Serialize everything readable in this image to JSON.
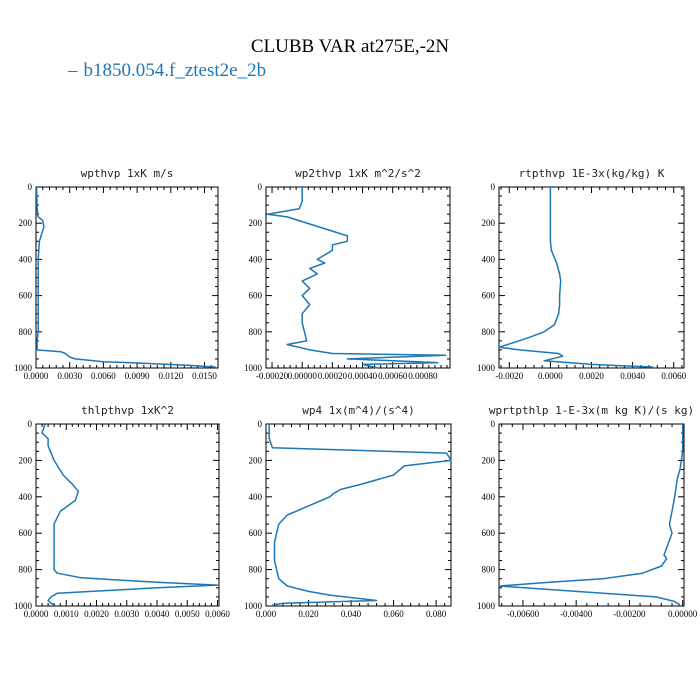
{
  "title": "CLUBB VAR at275E,-2N",
  "legend": {
    "label": "b1850.054.f_ztest2e_2b",
    "color": "#1f77b4"
  },
  "chart_data": [
    {
      "type": "line",
      "title": "wpthvp  1xK m/s",
      "xlim": [
        0,
        0.0162
      ],
      "ylim": [
        1000,
        0
      ],
      "xticks": [
        0,
        0.003,
        0.006,
        0.009,
        0.012,
        0.015
      ],
      "xtick_labels": [
        "0.0000",
        "0.0030",
        "0.0060",
        "0.0090",
        "0.0120",
        "0.0150"
      ],
      "yticks": [
        0,
        200,
        400,
        600,
        800,
        1000
      ],
      "series": [
        {
          "color": "#1f77b4",
          "x": [
            5e-05,
            0.0001,
            0.0002,
            0.0006,
            0.0007,
            0.0005,
            0.0003,
            0.0002,
            0.0002,
            0.0002,
            0.0002,
            0.0002,
            0.0001,
            0.0001,
            0.0001,
            0.0001,
            0.0001,
            0.0,
            0.0022,
            0.0026,
            0.003,
            0.0035,
            0.006,
            0.01,
            0.0135,
            0.016
          ],
          "y": [
            0,
            120,
            165,
            185,
            220,
            260,
            300,
            400,
            500,
            600,
            700,
            800,
            850,
            870,
            880,
            890,
            895,
            900,
            910,
            920,
            940,
            950,
            965,
            975,
            985,
            995
          ]
        }
      ]
    },
    {
      "type": "line",
      "title": "wp2thvp  1xK m^2/s^2",
      "xlim": [
        -0.00024,
        0.00098
      ],
      "ylim": [
        1000,
        0
      ],
      "xticks": [
        -0.0002,
        0,
        0.0002,
        0.0004,
        0.0006,
        0.0008
      ],
      "xtick_labels": [
        "-0.00020",
        "0.00000",
        "0.00020",
        "0.00040",
        "0.00060",
        "0.00080"
      ],
      "yticks": [
        0,
        200,
        400,
        600,
        800,
        1000
      ],
      "series": [
        {
          "color": "#1f77b4",
          "x": [
            0.0,
            0.0,
            -2e-05,
            -0.00023,
            -0.0001,
            0.0003,
            0.0003,
            0.0002,
            0.0002,
            0.0001,
            0.00015,
            5e-05,
            0.0001,
            0.0,
            5e-05,
            0.0,
            5e-05,
            0.0,
            0.0,
            3e-05,
            -0.0001,
            5e-05,
            0.0002,
            0.00095,
            0.0003,
            0.0009,
            0.0004,
            0.0005
          ],
          "y": [
            0,
            80,
            120,
            150,
            165,
            270,
            300,
            320,
            350,
            400,
            420,
            450,
            480,
            520,
            560,
            600,
            650,
            700,
            750,
            850,
            870,
            900,
            920,
            930,
            950,
            970,
            980,
            1000
          ]
        }
      ]
    },
    {
      "type": "line",
      "title": "rtpthvp  1E-3x(kg/kg) K",
      "xlim": [
        -0.0025,
        0.0065
      ],
      "ylim": [
        1000,
        0
      ],
      "xticks": [
        -0.002,
        0,
        0.002,
        0.004,
        0.006
      ],
      "xtick_labels": [
        "-0.0020",
        "0.0000",
        "0.0020",
        "0.0040",
        "0.0060"
      ],
      "yticks": [
        0,
        200,
        400,
        600,
        800,
        1000
      ],
      "series": [
        {
          "color": "#1f77b4",
          "x": [
            0.0,
            0.0,
            0.0,
            0.0,
            5e-05,
            0.0003,
            0.00045,
            0.0005,
            0.00045,
            0.00045,
            0.0004,
            0.0002,
            -0.0003,
            -0.001,
            -0.0018,
            -0.0025,
            -0.0015,
            0.0004,
            0.0006,
            -0.0003,
            0.002,
            0.005
          ],
          "y": [
            0,
            150,
            250,
            300,
            350,
            420,
            480,
            520,
            600,
            650,
            700,
            760,
            800,
            830,
            860,
            885,
            900,
            920,
            935,
            960,
            980,
            995
          ]
        }
      ]
    },
    {
      "type": "line",
      "title": "thlpthvp  1xK^2",
      "xlim": [
        0,
        0.00605
      ],
      "ylim": [
        1000,
        0
      ],
      "xticks": [
        0,
        0.001,
        0.002,
        0.003,
        0.004,
        0.005,
        0.006
      ],
      "xtick_labels": [
        "0.0000",
        "0.0010",
        "0.0020",
        "0.0030",
        "0.0040",
        "0.0050",
        "0.0060"
      ],
      "yticks": [
        0,
        200,
        400,
        600,
        800,
        1000
      ],
      "series": [
        {
          "color": "#1f77b4",
          "x": [
            0.0003,
            0.0002,
            0.0004,
            0.0004,
            0.0006,
            0.0009,
            0.0012,
            0.0014,
            0.0013,
            0.0008,
            0.0006,
            0.0006,
            0.0006,
            0.0006,
            0.0007,
            0.0015,
            0.004,
            0.006,
            0.004,
            0.0007,
            0.0005,
            0.0004,
            0.0005,
            0.0006
          ],
          "y": [
            0,
            50,
            80,
            120,
            200,
            280,
            330,
            370,
            420,
            480,
            550,
            650,
            740,
            800,
            820,
            845,
            870,
            885,
            900,
            930,
            950,
            970,
            985,
            995
          ]
        }
      ]
    },
    {
      "type": "line",
      "title": "wp4  1x(m^4)/(s^4)",
      "xlim": [
        0,
        0.087
      ],
      "ylim": [
        1000,
        0
      ],
      "xticks": [
        0,
        0.02,
        0.04,
        0.06,
        0.08
      ],
      "xtick_labels": [
        "0.000",
        "0.020",
        "0.040",
        "0.060",
        "0.080"
      ],
      "yticks": [
        0,
        200,
        400,
        600,
        800,
        1000
      ],
      "series": [
        {
          "color": "#1f77b4",
          "x": [
            0.0015,
            0.0015,
            0.003,
            0.085,
            0.087,
            0.065,
            0.06,
            0.045,
            0.035,
            0.032,
            0.03,
            0.02,
            0.01,
            0.006,
            0.005,
            0.004,
            0.004,
            0.004,
            0.005,
            0.006,
            0.01,
            0.02,
            0.03,
            0.045,
            0.052,
            0.008,
            0.003
          ],
          "y": [
            0,
            80,
            130,
            160,
            200,
            230,
            280,
            330,
            360,
            380,
            400,
            450,
            500,
            550,
            600,
            650,
            700,
            750,
            800,
            850,
            890,
            920,
            940,
            960,
            970,
            985,
            995
          ]
        }
      ]
    },
    {
      "type": "line",
      "title": "wprtpthlp  1-E-3x(m kg K)/(s kg)",
      "xlim": [
        -0.0069,
        5e-05
      ],
      "ylim": [
        1000,
        0
      ],
      "xticks": [
        -0.006,
        -0.004,
        -0.002,
        0
      ],
      "xtick_labels": [
        "-0.00600",
        "-0.00400",
        "-0.00200",
        "0.00000"
      ],
      "yticks": [
        0,
        200,
        400,
        600,
        800,
        1000
      ],
      "series": [
        {
          "color": "#1f77b4",
          "x": [
            0.0,
            0.0,
            -0.0001,
            -0.0002,
            -0.0003,
            -0.0004,
            -0.0005,
            -0.0004,
            -0.0006,
            -0.0007,
            -0.0006,
            -0.0008,
            -0.0015,
            -0.003,
            -0.005,
            -0.0069,
            -0.004,
            -0.001,
            -0.0003,
            -0.0001
          ],
          "y": [
            0,
            150,
            250,
            300,
            400,
            480,
            550,
            600,
            680,
            720,
            740,
            780,
            820,
            850,
            870,
            890,
            920,
            950,
            975,
            995
          ]
        }
      ]
    }
  ]
}
